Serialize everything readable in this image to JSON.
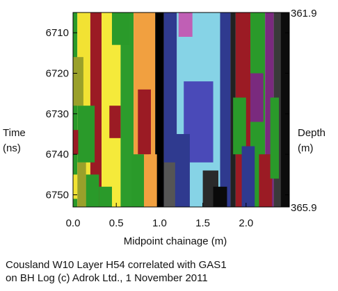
{
  "chart_data": {
    "type": "heatmap",
    "title": "",
    "xlabel": "Midpoint chainage (m)",
    "ylabel_left": [
      "Time",
      "(ns)"
    ],
    "ylabel_right": [
      "Depth",
      "(m)"
    ],
    "xlim": [
      0.0,
      2.5
    ],
    "ylim_time": [
      6705,
      6753
    ],
    "x_ticks": [
      0.0,
      0.5,
      1.0,
      1.5,
      2.0
    ],
    "x_tick_labels": [
      "0.0",
      "0.5",
      "1.0",
      "1.5",
      "2.0"
    ],
    "y_ticks": [
      6710,
      6720,
      6730,
      6740,
      6750
    ],
    "y_tick_labels": [
      "6710",
      "6720",
      "6730",
      "6740",
      "6750"
    ],
    "depth_top_label": "361.9",
    "depth_bottom_label": "365.9",
    "bands": [
      {
        "color": "#2a9a2a",
        "x0": 0.0,
        "x1": 0.05
      },
      {
        "color": "#f2e233",
        "x0": 0.05,
        "x1": 0.2
      },
      {
        "color": "#9b1b24",
        "x0": 0.2,
        "x1": 0.33
      },
      {
        "color": "#f5ea3a",
        "x0": 0.33,
        "x1": 0.55
      },
      {
        "color": "#2c9c2c",
        "x0": 0.55,
        "x1": 0.7
      },
      {
        "color": "#f1a040",
        "x0": 0.7,
        "x1": 0.95
      },
      {
        "color": "#000000",
        "x0": 0.95,
        "x1": 1.05
      },
      {
        "color": "#2f3a8f",
        "x0": 1.05,
        "x1": 1.2
      },
      {
        "color": "#86d3e6",
        "x0": 1.2,
        "x1": 1.7
      },
      {
        "color": "#2f3a8f",
        "x0": 1.7,
        "x1": 1.82
      },
      {
        "color": "#222222",
        "x0": 1.82,
        "x1": 1.88
      },
      {
        "color": "#9b1b24",
        "x0": 1.88,
        "x1": 2.05
      },
      {
        "color": "#2a9a2a",
        "x0": 2.05,
        "x1": 2.22
      },
      {
        "color": "#7a2a7e",
        "x0": 2.22,
        "x1": 2.32
      },
      {
        "color": "#3a3a3a",
        "x0": 2.32,
        "x1": 2.4
      },
      {
        "color": "#0c0c0c",
        "x0": 2.4,
        "x1": 2.5
      }
    ],
    "patches": [
      {
        "color": "#9aa02a",
        "x0": 0.0,
        "x1": 0.12,
        "t0": 6716,
        "t1": 6728
      },
      {
        "color": "#9aa02a",
        "x0": 0.05,
        "x1": 0.15,
        "t0": 6742,
        "t1": 6753
      },
      {
        "color": "#2a9a2a",
        "x0": 0.05,
        "x1": 0.25,
        "t0": 6728,
        "t1": 6742
      },
      {
        "color": "#9b1b24",
        "x0": 0.0,
        "x1": 0.06,
        "t0": 6734,
        "t1": 6740
      },
      {
        "color": "#f2e233",
        "x0": 0.0,
        "x1": 0.05,
        "t0": 6745,
        "t1": 6751
      },
      {
        "color": "#2a9a2a",
        "x0": 0.15,
        "x1": 0.3,
        "t0": 6745,
        "t1": 6753
      },
      {
        "color": "#9b1b24",
        "x0": 0.42,
        "x1": 0.55,
        "t0": 6728,
        "t1": 6736
      },
      {
        "color": "#2a9a2a",
        "x0": 0.3,
        "x1": 0.45,
        "t0": 6748,
        "t1": 6753
      },
      {
        "color": "#2a9a2a",
        "x0": 0.45,
        "x1": 0.65,
        "t0": 6705,
        "t1": 6713
      },
      {
        "color": "#9b1b24",
        "x0": 0.75,
        "x1": 0.9,
        "t0": 6724,
        "t1": 6740
      },
      {
        "color": "#2a9a2a",
        "x0": 0.68,
        "x1": 0.82,
        "t0": 6740,
        "t1": 6753
      },
      {
        "color": "#f1a040",
        "x0": 0.88,
        "x1": 0.97,
        "t0": 6740,
        "t1": 6753
      },
      {
        "color": "#4a4ab8",
        "x0": 1.28,
        "x1": 1.62,
        "t0": 6722,
        "t1": 6742
      },
      {
        "color": "#2f3a8f",
        "x0": 1.1,
        "x1": 1.35,
        "t0": 6735,
        "t1": 6753
      },
      {
        "color": "#555555",
        "x0": 1.05,
        "x1": 1.18,
        "t0": 6742,
        "t1": 6753
      },
      {
        "color": "#2a2a2a",
        "x0": 1.5,
        "x1": 1.68,
        "t0": 6744,
        "t1": 6753
      },
      {
        "color": "#0a0a0a",
        "x0": 1.62,
        "x1": 1.78,
        "t0": 6748,
        "t1": 6753
      },
      {
        "color": "#c05fb5",
        "x0": 1.22,
        "x1": 1.38,
        "t0": 6705,
        "t1": 6711
      },
      {
        "color": "#2a9a2a",
        "x0": 1.85,
        "x1": 2.0,
        "t0": 6726,
        "t1": 6740
      },
      {
        "color": "#2f3a8f",
        "x0": 1.95,
        "x1": 2.1,
        "t0": 6738,
        "t1": 6753
      },
      {
        "color": "#7a2a7e",
        "x0": 2.05,
        "x1": 2.2,
        "t0": 6720,
        "t1": 6732
      },
      {
        "color": "#9b1b24",
        "x0": 2.15,
        "x1": 2.3,
        "t0": 6740,
        "t1": 6753
      },
      {
        "color": "#2a9a2a",
        "x0": 2.28,
        "x1": 2.38,
        "t0": 6726,
        "t1": 6746
      }
    ]
  },
  "caption": {
    "line1": "Cousland W10 Layer H54 correlated with GAS1",
    "line2": "on BH Log (c) Adrok Ltd., 1 November 2011"
  }
}
